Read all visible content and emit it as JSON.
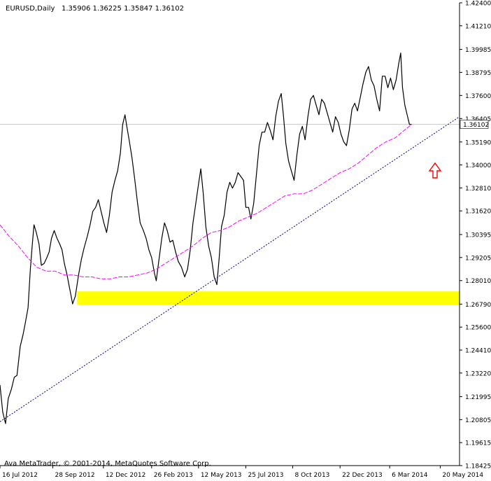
{
  "header": {
    "symbol": "EURUSD,Daily",
    "ohlc": "1.35906 1.36225 1.35847 1.36102"
  },
  "footer": {
    "copyright": "Ava MetaTrader, © 2001-2014, MetaQuotes Software Corp."
  },
  "current_price_label": "1.36102",
  "colors": {
    "price_line": "#000000",
    "moving_average": "#ff00ff",
    "trendline": "#00008b",
    "support_zone": "#ffff00",
    "arrow": "#ff0000"
  },
  "chart_data": {
    "type": "line",
    "title": "EURUSD,Daily",
    "ylim": [
      1.18425,
      1.424
    ],
    "grid": false,
    "y_ticks": [
      "1.42400",
      "1.41210",
      "1.39985",
      "1.38795",
      "1.37600",
      "1.36405",
      "1.35190",
      "1.34000",
      "1.32810",
      "1.31620",
      "1.30395",
      "1.29205",
      "1.28010",
      "1.26790",
      "1.25600",
      "1.24410",
      "1.23220",
      "1.21995",
      "1.20805",
      "1.19615",
      "1.18425"
    ],
    "x_ticks": [
      "16 Jul 2012",
      "28 Sep 2012",
      "12 Dec 2012",
      "26 Feb 2013",
      "12 May 2013",
      "25 Jul 2013",
      "8 Oct 2013",
      "22 Dec 2013",
      "6 Mar 2014",
      "20 May 2014"
    ],
    "x_tick_fractions": [
      0.0,
      0.115,
      0.225,
      0.33,
      0.432,
      0.535,
      0.637,
      0.74,
      0.848,
      0.958
    ],
    "series": [
      {
        "style": "price",
        "points": [
          [
            0.0,
            1.226
          ],
          [
            0.006,
            1.212
          ],
          [
            0.012,
            1.206
          ],
          [
            0.018,
            1.219
          ],
          [
            0.025,
            1.224
          ],
          [
            0.031,
            1.23
          ],
          [
            0.037,
            1.231
          ],
          [
            0.044,
            1.246
          ],
          [
            0.05,
            1.252
          ],
          [
            0.055,
            1.258
          ],
          [
            0.061,
            1.266
          ],
          [
            0.066,
            1.286
          ],
          [
            0.07,
            1.298
          ],
          [
            0.074,
            1.309
          ],
          [
            0.079,
            1.305
          ],
          [
            0.085,
            1.299
          ],
          [
            0.09,
            1.288
          ],
          [
            0.096,
            1.289
          ],
          [
            0.102,
            1.292
          ],
          [
            0.107,
            1.295
          ],
          [
            0.112,
            1.302
          ],
          [
            0.118,
            1.306
          ],
          [
            0.124,
            1.302
          ],
          [
            0.13,
            1.299
          ],
          [
            0.135,
            1.296
          ],
          [
            0.14,
            1.289
          ],
          [
            0.146,
            1.283
          ],
          [
            0.15,
            1.278
          ],
          [
            0.154,
            1.273
          ],
          [
            0.158,
            1.268
          ],
          [
            0.164,
            1.272
          ],
          [
            0.171,
            1.283
          ],
          [
            0.177,
            1.291
          ],
          [
            0.183,
            1.297
          ],
          [
            0.19,
            1.303
          ],
          [
            0.196,
            1.309
          ],
          [
            0.202,
            1.316
          ],
          [
            0.208,
            1.318
          ],
          [
            0.214,
            1.322
          ],
          [
            0.22,
            1.316
          ],
          [
            0.226,
            1.31
          ],
          [
            0.232,
            1.305
          ],
          [
            0.238,
            1.314
          ],
          [
            0.244,
            1.326
          ],
          [
            0.25,
            1.332
          ],
          [
            0.256,
            1.337
          ],
          [
            0.262,
            1.346
          ],
          [
            0.267,
            1.361
          ],
          [
            0.272,
            1.366
          ],
          [
            0.276,
            1.36
          ],
          [
            0.281,
            1.353
          ],
          [
            0.287,
            1.344
          ],
          [
            0.293,
            1.333
          ],
          [
            0.299,
            1.321
          ],
          [
            0.305,
            1.31
          ],
          [
            0.312,
            1.306
          ],
          [
            0.318,
            1.302
          ],
          [
            0.324,
            1.296
          ],
          [
            0.33,
            1.292
          ],
          [
            0.336,
            1.284
          ],
          [
            0.34,
            1.28
          ],
          [
            0.346,
            1.291
          ],
          [
            0.352,
            1.302
          ],
          [
            0.358,
            1.31
          ],
          [
            0.364,
            1.306
          ],
          [
            0.37,
            1.3
          ],
          [
            0.376,
            1.301
          ],
          [
            0.382,
            1.295
          ],
          [
            0.388,
            1.29
          ],
          [
            0.395,
            1.287
          ],
          [
            0.402,
            1.282
          ],
          [
            0.408,
            1.286
          ],
          [
            0.414,
            1.296
          ],
          [
            0.42,
            1.31
          ],
          [
            0.426,
            1.32
          ],
          [
            0.432,
            1.33
          ],
          [
            0.437,
            1.338
          ],
          [
            0.442,
            1.326
          ],
          [
            0.448,
            1.308
          ],
          [
            0.454,
            1.298
          ],
          [
            0.46,
            1.292
          ],
          [
            0.466,
            1.282
          ],
          [
            0.472,
            1.278
          ],
          [
            0.477,
            1.292
          ],
          [
            0.482,
            1.308
          ],
          [
            0.488,
            1.314
          ],
          [
            0.494,
            1.326
          ],
          [
            0.5,
            1.331
          ],
          [
            0.506,
            1.328
          ],
          [
            0.512,
            1.331
          ],
          [
            0.518,
            1.336
          ],
          [
            0.524,
            1.334
          ],
          [
            0.53,
            1.332
          ],
          [
            0.535,
            1.318
          ],
          [
            0.541,
            1.318
          ],
          [
            0.546,
            1.312
          ],
          [
            0.552,
            1.32
          ],
          [
            0.558,
            1.335
          ],
          [
            0.564,
            1.35
          ],
          [
            0.57,
            1.357
          ],
          [
            0.576,
            1.357
          ],
          [
            0.582,
            1.362
          ],
          [
            0.588,
            1.358
          ],
          [
            0.594,
            1.353
          ],
          [
            0.6,
            1.365
          ],
          [
            0.606,
            1.373
          ],
          [
            0.612,
            1.377
          ],
          [
            0.617,
            1.365
          ],
          [
            0.622,
            1.351
          ],
          [
            0.628,
            1.342
          ],
          [
            0.634,
            1.337
          ],
          [
            0.64,
            1.332
          ],
          [
            0.646,
            1.345
          ],
          [
            0.652,
            1.356
          ],
          [
            0.658,
            1.36
          ],
          [
            0.664,
            1.353
          ],
          [
            0.67,
            1.365
          ],
          [
            0.676,
            1.374
          ],
          [
            0.682,
            1.376
          ],
          [
            0.688,
            1.371
          ],
          [
            0.694,
            1.366
          ],
          [
            0.7,
            1.374
          ],
          [
            0.706,
            1.372
          ],
          [
            0.712,
            1.367
          ],
          [
            0.718,
            1.362
          ],
          [
            0.724,
            1.357
          ],
          [
            0.73,
            1.365
          ],
          [
            0.736,
            1.362
          ],
          [
            0.742,
            1.356
          ],
          [
            0.748,
            1.352
          ],
          [
            0.754,
            1.35
          ],
          [
            0.76,
            1.358
          ],
          [
            0.766,
            1.369
          ],
          [
            0.772,
            1.372
          ],
          [
            0.778,
            1.368
          ],
          [
            0.784,
            1.375
          ],
          [
            0.79,
            1.382
          ],
          [
            0.796,
            1.388
          ],
          [
            0.802,
            1.391
          ],
          [
            0.808,
            1.384
          ],
          [
            0.814,
            1.381
          ],
          [
            0.82,
            1.374
          ],
          [
            0.826,
            1.368
          ],
          [
            0.832,
            1.386
          ],
          [
            0.838,
            1.386
          ],
          [
            0.844,
            1.38
          ],
          [
            0.85,
            1.385
          ],
          [
            0.856,
            1.379
          ],
          [
            0.862,
            1.384
          ],
          [
            0.868,
            1.393
          ],
          [
            0.872,
            1.398
          ],
          [
            0.876,
            1.38
          ],
          [
            0.881,
            1.371
          ],
          [
            0.886,
            1.366
          ],
          [
            0.891,
            1.361
          ],
          [
            0.896,
            1.361
          ]
        ]
      },
      {
        "style": "moving_average",
        "points": [
          [
            0.0,
            1.309
          ],
          [
            0.02,
            1.303
          ],
          [
            0.04,
            1.298
          ],
          [
            0.06,
            1.292
          ],
          [
            0.08,
            1.287
          ],
          [
            0.1,
            1.285
          ],
          [
            0.12,
            1.285
          ],
          [
            0.14,
            1.283
          ],
          [
            0.16,
            1.283
          ],
          [
            0.18,
            1.282
          ],
          [
            0.2,
            1.282
          ],
          [
            0.22,
            1.281
          ],
          [
            0.24,
            1.281
          ],
          [
            0.26,
            1.282
          ],
          [
            0.28,
            1.282
          ],
          [
            0.3,
            1.283
          ],
          [
            0.32,
            1.284
          ],
          [
            0.34,
            1.286
          ],
          [
            0.36,
            1.289
          ],
          [
            0.38,
            1.292
          ],
          [
            0.4,
            1.295
          ],
          [
            0.42,
            1.298
          ],
          [
            0.44,
            1.302
          ],
          [
            0.46,
            1.305
          ],
          [
            0.48,
            1.306
          ],
          [
            0.5,
            1.308
          ],
          [
            0.52,
            1.311
          ],
          [
            0.54,
            1.313
          ],
          [
            0.56,
            1.315
          ],
          [
            0.58,
            1.318
          ],
          [
            0.6,
            1.321
          ],
          [
            0.62,
            1.324
          ],
          [
            0.64,
            1.325
          ],
          [
            0.66,
            1.325
          ],
          [
            0.68,
            1.327
          ],
          [
            0.7,
            1.33
          ],
          [
            0.72,
            1.333
          ],
          [
            0.74,
            1.336
          ],
          [
            0.76,
            1.338
          ],
          [
            0.78,
            1.341
          ],
          [
            0.8,
            1.345
          ],
          [
            0.82,
            1.349
          ],
          [
            0.84,
            1.352
          ],
          [
            0.86,
            1.354
          ],
          [
            0.88,
            1.358
          ],
          [
            0.896,
            1.361
          ]
        ]
      },
      {
        "style": "trendline",
        "points": [
          [
            0.0,
            1.207
          ],
          [
            1.0,
            1.365
          ]
        ]
      }
    ],
    "support_zone": {
      "x_start": 0.168,
      "x_end": 1.0,
      "y_low": 1.2675,
      "y_high": 1.2745
    },
    "current_price": 1.36102
  }
}
